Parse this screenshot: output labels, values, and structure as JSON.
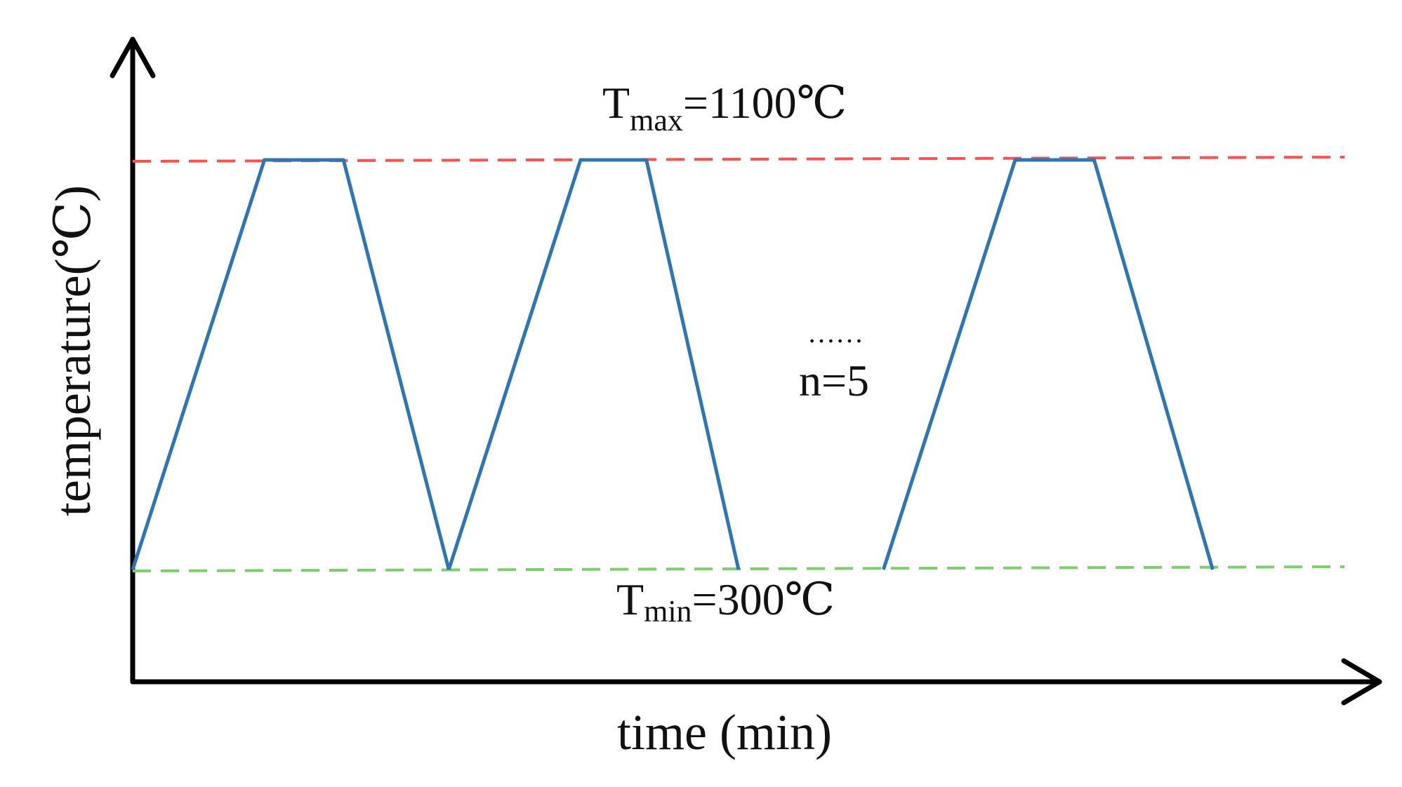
{
  "chart_data": {
    "type": "line",
    "xlabel": "time (min)",
    "ylabel": "temperature(℃)",
    "ylim": [
      0,
      1300
    ],
    "grid": false,
    "legend": "none",
    "series": [
      {
        "label_text": "",
        "color": "#2e75b6",
        "x": [
          0,
          10,
          16,
          24
        ],
        "y": [
          300,
          1100,
          1100,
          300
        ]
      },
      {
        "label_text": "",
        "color": "#2e75b6",
        "x": [
          24,
          34,
          39,
          46
        ],
        "y": [
          300,
          1100,
          1100,
          300
        ]
      },
      {
        "label_text": "",
        "color": "#2e75b6",
        "x": [
          57,
          67,
          73,
          82
        ],
        "y": [
          300,
          1100,
          1100,
          300
        ]
      }
    ],
    "reference_lines": [
      {
        "value": 1100,
        "color": "#ff5050",
        "style": "dashed"
      },
      {
        "value": 300,
        "color": "#7ccf6a",
        "style": "dashed"
      }
    ],
    "annotations": {
      "tmax": {
        "main": "T",
        "sub": "max",
        "rest": "=1100℃"
      },
      "tmin": {
        "main": "T",
        "sub": "min",
        "rest": "=300℃"
      },
      "ellipsis": "……",
      "cycles": "n=5"
    },
    "xlim": [
      0,
      92
    ]
  }
}
